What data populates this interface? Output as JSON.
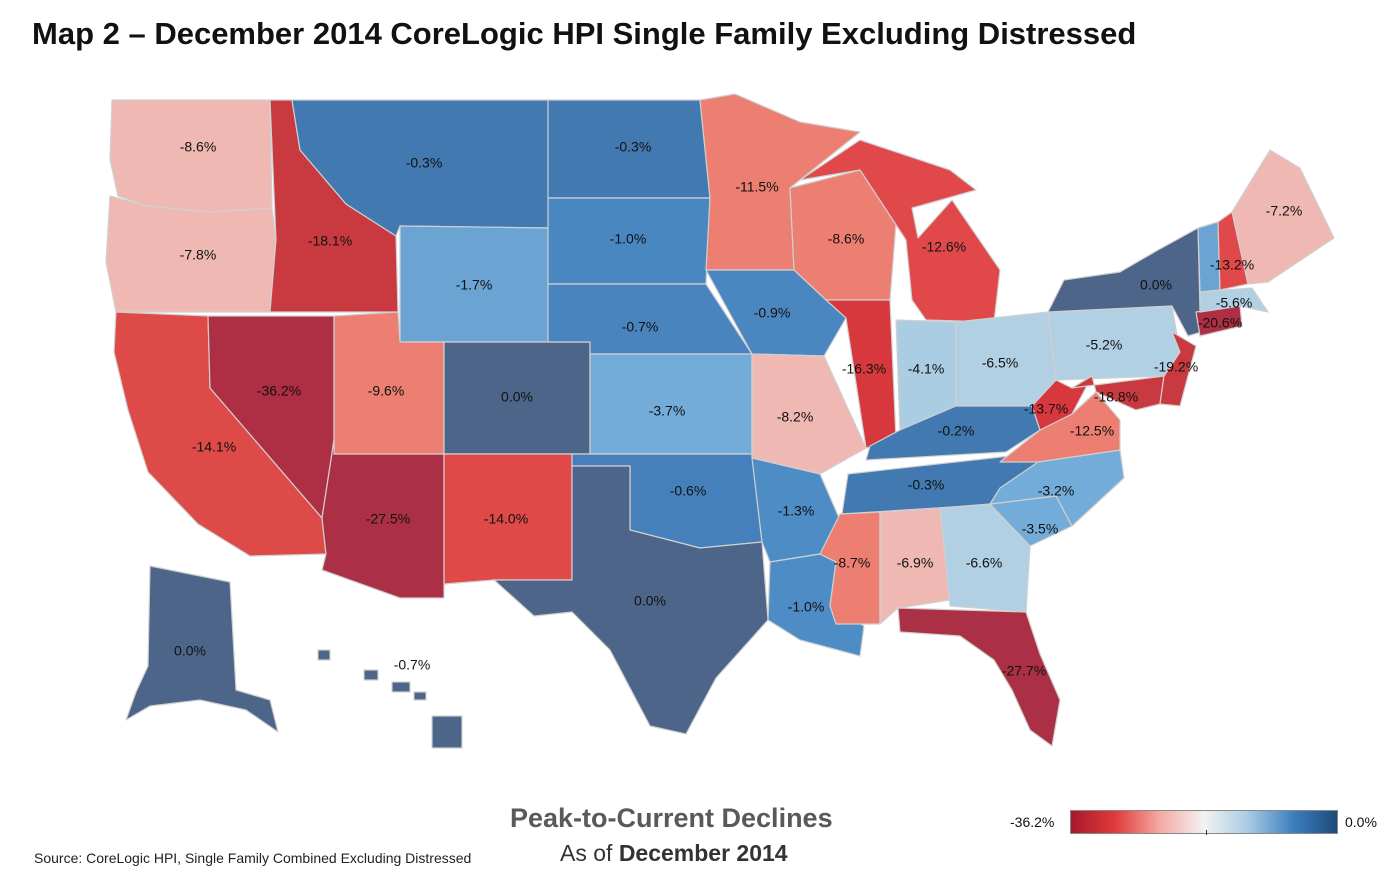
{
  "title": "Map 2 – December 2014 CoreLogic HPI Single Family Excluding Distressed",
  "legend": {
    "title": "Peak-to-Current Declines",
    "subtitle_prefix": "As of ",
    "subtitle_date": "December 2014",
    "min_label": "-36.2%",
    "max_label": "0.0%",
    "min_value": -36.2,
    "max_value": 0.0,
    "colors": [
      "#a7182a",
      "#e03b3b",
      "#f4a9a2",
      "#f2f2f2",
      "#a9cbe3",
      "#3e7fbf",
      "#1d4a7c"
    ]
  },
  "source": "Source: CoreLogic HPI, Single Family Combined Excluding Distressed",
  "states": [
    {
      "name": "Washington",
      "label": "-8.6%",
      "value": -8.6,
      "color": "#f0b8b3"
    },
    {
      "name": "Oregon",
      "label": "-7.8%",
      "value": -7.8,
      "color": "#f0b8b3"
    },
    {
      "name": "California",
      "label": "-14.1%",
      "value": -14.1,
      "color": "#de4a47"
    },
    {
      "name": "Nevada",
      "label": "-36.2%",
      "value": -36.2,
      "color": "#ae2f44"
    },
    {
      "name": "Idaho",
      "label": "-18.1%",
      "value": -18.1,
      "color": "#c83a40"
    },
    {
      "name": "Montana",
      "label": "-0.3%",
      "value": -0.3,
      "color": "#4279b1"
    },
    {
      "name": "Wyoming",
      "label": "-1.7%",
      "value": -1.7,
      "color": "#6ba4d2"
    },
    {
      "name": "Utah",
      "label": "-9.6%",
      "value": -9.6,
      "color": "#ec7f71"
    },
    {
      "name": "Arizona",
      "label": "-27.5%",
      "value": -27.5,
      "color": "#ac3045"
    },
    {
      "name": "Colorado",
      "label": "0.0%",
      "value": 0.0,
      "color": "#4c6589"
    },
    {
      "name": "New Mexico",
      "label": "-14.0%",
      "value": -14.0,
      "color": "#df4a48"
    },
    {
      "name": "North Dakota",
      "label": "-0.3%",
      "value": -0.3,
      "color": "#4279b1"
    },
    {
      "name": "South Dakota",
      "label": "-1.0%",
      "value": -1.0,
      "color": "#4987c0"
    },
    {
      "name": "Nebraska",
      "label": "-0.7%",
      "value": -0.7,
      "color": "#4a84bf"
    },
    {
      "name": "Kansas",
      "label": "-3.7%",
      "value": -3.7,
      "color": "#73acd9"
    },
    {
      "name": "Oklahoma",
      "label": "-0.6%",
      "value": -0.6,
      "color": "#4580bd"
    },
    {
      "name": "Texas",
      "label": "0.0%",
      "value": 0.0,
      "color": "#4c6589"
    },
    {
      "name": "Minnesota",
      "label": "-11.5%",
      "value": -11.5,
      "color": "#ec7f71"
    },
    {
      "name": "Iowa",
      "label": "-0.9%",
      "value": -0.9,
      "color": "#4a86c0"
    },
    {
      "name": "Missouri",
      "label": "-8.2%",
      "value": -8.2,
      "color": "#f0b8b3"
    },
    {
      "name": "Arkansas",
      "label": "-1.3%",
      "value": -1.3,
      "color": "#4e8cc6"
    },
    {
      "name": "Louisiana",
      "label": "-1.0%",
      "value": -1.0,
      "color": "#4e8cc6"
    },
    {
      "name": "Wisconsin",
      "label": "-8.6%",
      "value": -8.6,
      "color": "#ec7f71"
    },
    {
      "name": "Illinois",
      "label": "-16.3%",
      "value": -16.3,
      "color": "#d6383d"
    },
    {
      "name": "Michigan",
      "label": "-12.6%",
      "value": -12.6,
      "color": "#e0484a"
    },
    {
      "name": "Indiana",
      "label": "-4.1%",
      "value": -4.1,
      "color": "#aacde4"
    },
    {
      "name": "Ohio",
      "label": "-6.5%",
      "value": -6.5,
      "color": "#b1d0e4"
    },
    {
      "name": "Kentucky",
      "label": "-0.2%",
      "value": -0.2,
      "color": "#4279b1"
    },
    {
      "name": "Tennessee",
      "label": "-0.3%",
      "value": -0.3,
      "color": "#4279b1"
    },
    {
      "name": "Mississippi",
      "label": "-8.7%",
      "value": -8.7,
      "color": "#ec7f71"
    },
    {
      "name": "Alabama",
      "label": "-6.9%",
      "value": -6.9,
      "color": "#f0b8b3"
    },
    {
      "name": "Georgia",
      "label": "-6.6%",
      "value": -6.6,
      "color": "#b1d0e4"
    },
    {
      "name": "Florida",
      "label": "-27.7%",
      "value": -27.7,
      "color": "#ac3045"
    },
    {
      "name": "South Carolina",
      "label": "-3.5%",
      "value": -3.5,
      "color": "#73acd9"
    },
    {
      "name": "North Carolina",
      "label": "-3.2%",
      "value": -3.2,
      "color": "#73acd9"
    },
    {
      "name": "Virginia",
      "label": "-12.5%",
      "value": -12.5,
      "color": "#ec7f71"
    },
    {
      "name": "West Virginia",
      "label": "-13.7%",
      "value": -13.7,
      "color": "#d6383d"
    },
    {
      "name": "Pennsylvania",
      "label": "-5.2%",
      "value": -5.2,
      "color": "#b1d0e4"
    },
    {
      "name": "Maryland",
      "label": "-18.8%",
      "value": -18.8,
      "color": "#c83a40"
    },
    {
      "name": "New Jersey",
      "label": "-19.2%",
      "value": -19.2,
      "color": "#c83a40"
    },
    {
      "name": "New York",
      "label": "0.0%",
      "value": 0.0,
      "color": "#4c6589"
    },
    {
      "name": "Connecticut",
      "label": "-20.6%",
      "value": -20.6,
      "color": "#ae2f44"
    },
    {
      "name": "Massachusetts",
      "label": "-5.6%",
      "value": -5.6,
      "color": "#b1d0e4"
    },
    {
      "name": "Vermont",
      "label": "",
      "value": null,
      "color": "#6ba4d2"
    },
    {
      "name": "New Hampshire",
      "label": "-13.2%",
      "value": -13.2,
      "color": "#e0484a"
    },
    {
      "name": "Maine",
      "label": "-7.2%",
      "value": -7.2,
      "color": "#f0b8b3"
    },
    {
      "name": "Alaska",
      "label": "0.0%",
      "value": 0.0,
      "color": "#4c6589"
    },
    {
      "name": "Hawaii",
      "label": "-0.7%",
      "value": -0.7,
      "color": "#4c6589"
    }
  ]
}
